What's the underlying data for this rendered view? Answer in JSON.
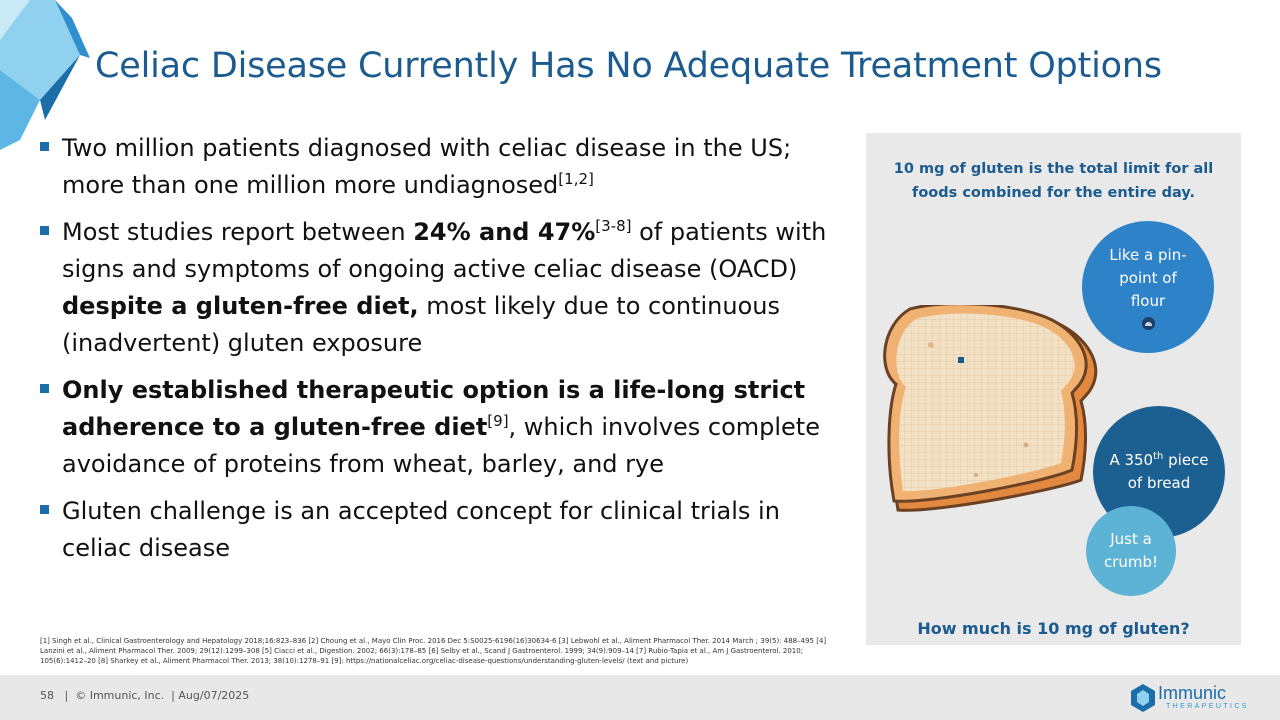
{
  "slide": {
    "title": "Celiac Disease Currently Has No Adequate Treatment Options"
  },
  "bullets": [
    {
      "parts": [
        {
          "t": "Two million patients diagnosed with celiac disease in the US; more than one million more undiagnosed"
        },
        {
          "t": "[1,2]",
          "s": "sup"
        }
      ]
    },
    {
      "parts": [
        {
          "t": "Most studies report between "
        },
        {
          "t": "24% and 47%",
          "s": "b"
        },
        {
          "t": "[3-8]",
          "s": "sup"
        },
        {
          "t": " of patients with signs and symptoms of ongoing active celiac disease (OACD) "
        },
        {
          "t": "despite a gluten-free diet,",
          "s": "b"
        },
        {
          "t": " most likely due to continuous (inadvertent) gluten exposure"
        }
      ]
    },
    {
      "parts": [
        {
          "t": "Only established therapeutic option is a life-long strict adherence to a gluten-free diet",
          "s": "b"
        },
        {
          "t": "[9]",
          "s": "sup"
        },
        {
          "t": ", which involves complete avoidance of proteins from wheat, barley, and rye"
        }
      ]
    },
    {
      "parts": [
        {
          "t": "Gluten challenge is an accepted concept for clinical trials in celiac disease"
        }
      ]
    }
  ],
  "references": "[1] Singh et al., Clinical Gastroenterology and Hepatology 2018;16:823–836 [2] Choung et al., Mayo Clin Proc. 2016 Dec 5:S0025-6196(16)30634-6 [3] Lebwohl et al., Aliment Pharmacol Ther. 2014 March ; 39(5): 488–495 [4] Lanzini et al., Aliment Pharmacol Ther. 2009; 29(12):1299–308 [5] Ciacci et al., Digestion. 2002; 66(3):178–85 [6] Selby et al., Scand J Gastroenterol. 1999; 34(9):909–14 [7] Rubio-Tapia et al., Am J Gastroenterol. 2010; 105(6):1412–20 [8] Sharkey et al., Aliment Pharmacol Ther. 2013; 38(10):1278–91 [9]: https://nationalceliac.org/celiac-disease-questions/understanding-gluten-levels/ (text and picture)",
  "panel": {
    "header": "10 mg of gluten is the total limit for all foods combined for the entire day.",
    "bubble_1": "Like a pin-point of flour",
    "bubble_2_prefix": "A 350",
    "bubble_2_sup": "th",
    "bubble_2_suffix": " piece of bread",
    "bubble_3": "Just a crumb!",
    "question": "How much is 10 mg of gluten?"
  },
  "footer": {
    "page": "58",
    "copyright": "© Immunic, Inc.",
    "date": "Aug/07/2025"
  },
  "logo": {
    "name": "Immunic",
    "sub": "THERAPEUTICS"
  },
  "colors": {
    "title": "#1b5b8f",
    "bullet": "#1b6ea8",
    "bubble_1": "#2e82c7",
    "bubble_2": "#1c5f91",
    "bubble_3": "#5db3d6",
    "panel_bg": "#e9e9e9"
  }
}
